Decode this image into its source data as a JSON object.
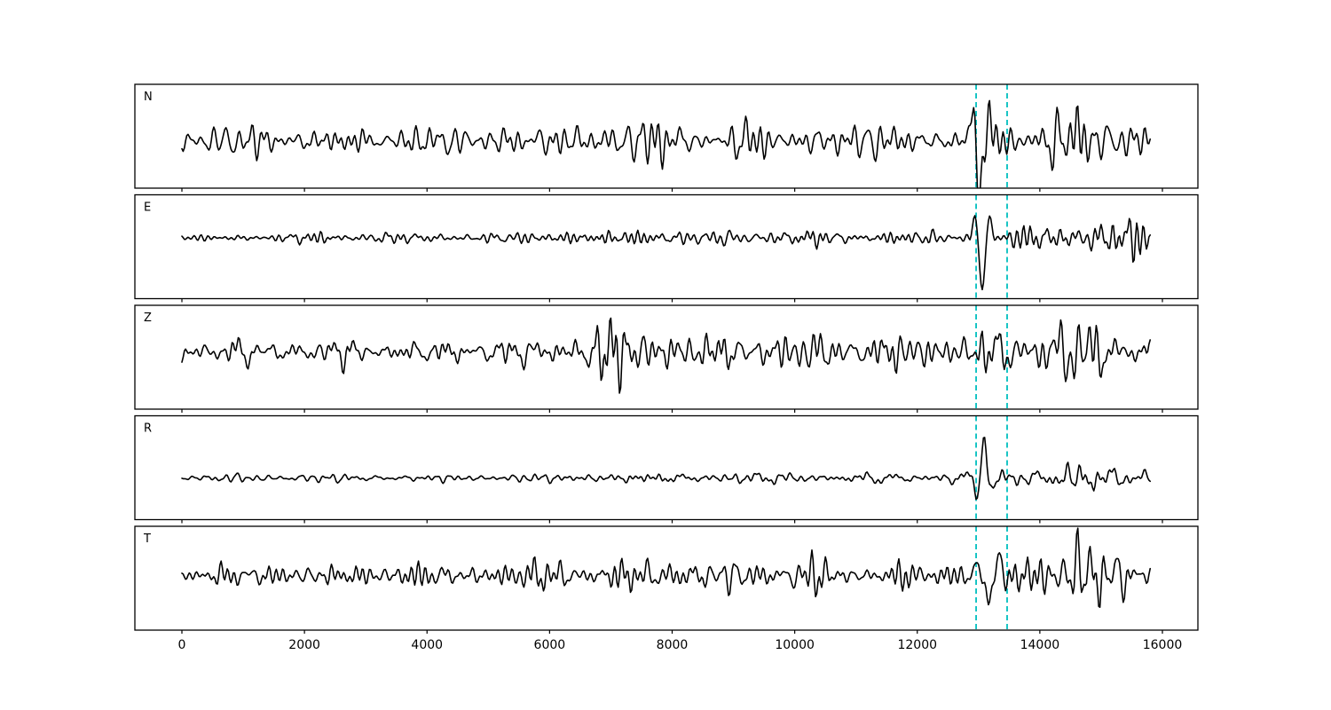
{
  "figure": {
    "background_color": "#ffffff",
    "trace_color": "#000000",
    "border_color": "#000000",
    "pick_line_color": "#00bfbf",
    "pick_line_style": "dashed"
  },
  "chart_data": {
    "type": "line",
    "title": "",
    "xlabel": "",
    "ylabel": "",
    "description": "Five-panel seismogram waveform plot; components N, E, Z, R, T; black traces; two cyan dashed vertical pick lines in every panel; x axis in samples, labeled only under the bottom panel; no y-axis ticks.",
    "xlim": [
      -770,
      16580
    ],
    "xticks": [
      0,
      2000,
      4000,
      6000,
      8000,
      10000,
      12000,
      14000,
      16000
    ],
    "grid": false,
    "legend": null,
    "x_start": 0,
    "x_end": 15800,
    "render_step": 20,
    "pick_lines_x": [
      12960,
      13466
    ],
    "panels": [
      {
        "label": "N",
        "seed": 11,
        "baseline": 0.545,
        "envelope": [
          [
            0,
            0.22
          ],
          [
            4000,
            0.24
          ],
          [
            6200,
            0.26
          ],
          [
            6600,
            0.3
          ],
          [
            7200,
            0.4
          ],
          [
            7800,
            0.34
          ],
          [
            9000,
            0.3
          ],
          [
            11500,
            0.27
          ],
          [
            12700,
            0.3
          ],
          [
            12950,
            0.55
          ],
          [
            13300,
            0.58
          ],
          [
            13650,
            0.44
          ],
          [
            14100,
            0.4
          ],
          [
            14600,
            0.48
          ],
          [
            15000,
            0.46
          ],
          [
            15800,
            0.36
          ]
        ],
        "wavelets": [
          {
            "x0": 13050,
            "amp": -0.6,
            "sigma": 200,
            "lambda": 330,
            "phase": 1.5708
          },
          {
            "x0": 14620,
            "amp": 0.85,
            "sigma": 75,
            "lambda": 200,
            "phase": 1.5708
          }
        ]
      },
      {
        "label": "E",
        "seed": 22,
        "baseline": 0.415,
        "envelope": [
          [
            0,
            0.07
          ],
          [
            2000,
            0.075
          ],
          [
            4000,
            0.085
          ],
          [
            6000,
            0.1
          ],
          [
            6800,
            0.15
          ],
          [
            7400,
            0.17
          ],
          [
            8200,
            0.13
          ],
          [
            10000,
            0.12
          ],
          [
            11500,
            0.1
          ],
          [
            12600,
            0.11
          ],
          [
            13250,
            0.2
          ],
          [
            13700,
            0.24
          ],
          [
            14200,
            0.25
          ],
          [
            14700,
            0.3
          ],
          [
            15200,
            0.26
          ],
          [
            15800,
            0.24
          ]
        ],
        "wavelets": [
          {
            "x0": 13060,
            "amp": -1.05,
            "sigma": 130,
            "lambda": 280,
            "phase": 1.5708
          }
        ]
      },
      {
        "label": "Z",
        "seed": 33,
        "baseline": 0.449,
        "envelope": [
          [
            0,
            0.19
          ],
          [
            2000,
            0.2
          ],
          [
            4000,
            0.2
          ],
          [
            5600,
            0.21
          ],
          [
            6300,
            0.24
          ],
          [
            6550,
            0.68
          ],
          [
            6800,
            0.78
          ],
          [
            7100,
            0.62
          ],
          [
            7500,
            0.5
          ],
          [
            7900,
            0.4
          ],
          [
            8400,
            0.33
          ],
          [
            9200,
            0.3
          ],
          [
            10500,
            0.29
          ],
          [
            11500,
            0.3
          ],
          [
            12500,
            0.29
          ],
          [
            13200,
            0.33
          ],
          [
            13800,
            0.36
          ],
          [
            14400,
            0.44
          ],
          [
            14800,
            0.42
          ],
          [
            15300,
            0.36
          ],
          [
            15800,
            0.3
          ]
        ],
        "wavelets": [
          {
            "x0": 6700,
            "amp": -0.45,
            "sigma": 180,
            "lambda": 280,
            "phase": 1.5708
          }
        ]
      },
      {
        "label": "R",
        "seed": 44,
        "baseline": 0.6,
        "envelope": [
          [
            0,
            0.055
          ],
          [
            3000,
            0.06
          ],
          [
            5000,
            0.06
          ],
          [
            6200,
            0.07
          ],
          [
            6700,
            0.1
          ],
          [
            7100,
            0.13
          ],
          [
            7600,
            0.11
          ],
          [
            8500,
            0.1
          ],
          [
            10000,
            0.1
          ],
          [
            11500,
            0.09
          ],
          [
            12600,
            0.1
          ],
          [
            13250,
            0.18
          ],
          [
            13700,
            0.21
          ],
          [
            14300,
            0.22
          ],
          [
            14800,
            0.25
          ],
          [
            15300,
            0.22
          ],
          [
            15800,
            0.2
          ]
        ],
        "wavelets": [
          {
            "x0": 13090,
            "amp": 0.95,
            "sigma": 130,
            "lambda": 280,
            "phase": 1.5708
          }
        ]
      },
      {
        "label": "T",
        "seed": 55,
        "baseline": 0.475,
        "envelope": [
          [
            0,
            0.2
          ],
          [
            2000,
            0.22
          ],
          [
            4000,
            0.23
          ],
          [
            5200,
            0.25
          ],
          [
            6400,
            0.28
          ],
          [
            7200,
            0.3
          ],
          [
            8200,
            0.28
          ],
          [
            9500,
            0.27
          ],
          [
            11000,
            0.25
          ],
          [
            12300,
            0.26
          ],
          [
            12900,
            0.33
          ],
          [
            13250,
            0.48
          ],
          [
            13650,
            0.38
          ],
          [
            14100,
            0.36
          ],
          [
            14700,
            0.42
          ],
          [
            15100,
            0.42
          ],
          [
            15600,
            0.4
          ],
          [
            15800,
            0.36
          ]
        ],
        "wavelets": [
          {
            "x0": 13140,
            "amp": -0.62,
            "sigma": 150,
            "lambda": 300,
            "phase": 1.5708
          },
          {
            "x0": 14620,
            "amp": 0.75,
            "sigma": 75,
            "lambda": 200,
            "phase": 1.5708
          }
        ]
      }
    ]
  }
}
